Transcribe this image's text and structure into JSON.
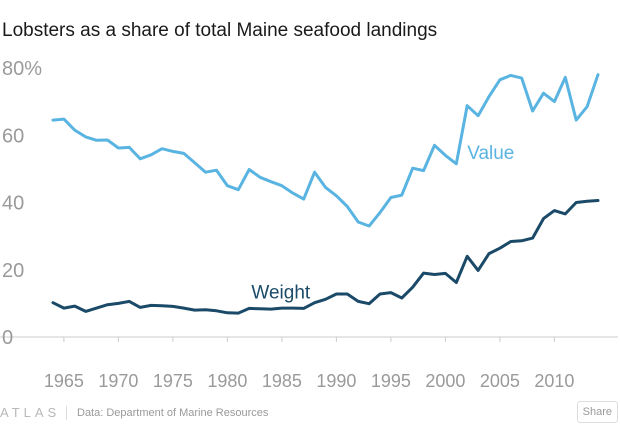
{
  "title": "Lobsters as a share of total Maine seafood landings",
  "footer": {
    "logo": "ATLAS",
    "source": "Data: Department of Marine Resources",
    "share_label": "Share"
  },
  "colors": {
    "value": "#5ab4e1",
    "weight": "#1a4a68",
    "axis": "#cccccc",
    "tick_text": "#9a9a9a"
  },
  "chart_data": {
    "type": "line",
    "title": "Lobsters as a share of total Maine seafood landings",
    "xlabel": "",
    "ylabel": "",
    "xlim": [
      1964,
      2014
    ],
    "ylim": [
      0,
      80
    ],
    "x_ticks": [
      "1965",
      "1970",
      "1975",
      "1980",
      "1985",
      "1990",
      "1995",
      "2000",
      "2005",
      "2010"
    ],
    "y_ticks": [
      "0",
      "20",
      "40",
      "60",
      "80%"
    ],
    "grid": false,
    "x": [
      1964,
      1965,
      1966,
      1967,
      1968,
      1969,
      1970,
      1971,
      1972,
      1973,
      1974,
      1975,
      1976,
      1977,
      1978,
      1979,
      1980,
      1981,
      1982,
      1983,
      1984,
      1985,
      1986,
      1987,
      1988,
      1989,
      1990,
      1991,
      1992,
      1993,
      1994,
      1995,
      1996,
      1997,
      1998,
      1999,
      2000,
      2001,
      2002,
      2003,
      2004,
      2005,
      2006,
      2007,
      2008,
      2009,
      2010,
      2011,
      2012,
      2013,
      2014
    ],
    "series": [
      {
        "name": "Value",
        "values": [
          64.5,
          64.8,
          61.5,
          59.5,
          58.5,
          58.6,
          56.2,
          56.4,
          53.0,
          54.2,
          56.0,
          55.2,
          54.6,
          51.8,
          49.0,
          49.6,
          45.0,
          43.8,
          49.8,
          47.5,
          46.2,
          45.0,
          42.8,
          41.0,
          49.0,
          44.5,
          42.0,
          38.8,
          34.2,
          33.0,
          37.0,
          41.5,
          42.2,
          50.2,
          49.5,
          57.0,
          54.0,
          51.5,
          68.8,
          65.8,
          71.5,
          76.5,
          77.8,
          77.0,
          67.2,
          72.5,
          70.0,
          77.2,
          64.5,
          68.5,
          78.0
        ]
      },
      {
        "name": "Weight",
        "values": [
          10.2,
          8.6,
          9.2,
          7.6,
          8.6,
          9.6,
          10.0,
          10.6,
          8.8,
          9.4,
          9.3,
          9.1,
          8.6,
          8.0,
          8.1,
          7.8,
          7.2,
          7.1,
          8.5,
          8.4,
          8.3,
          8.6,
          8.6,
          8.5,
          10.2,
          11.2,
          12.8,
          12.8,
          10.6,
          9.9,
          12.8,
          13.2,
          11.6,
          14.8,
          19.0,
          18.6,
          18.9,
          16.2,
          24.0,
          19.8,
          24.8,
          26.4,
          28.4,
          28.6,
          29.4,
          35.2,
          37.6,
          36.6,
          40.0,
          40.4,
          40.6
        ]
      }
    ]
  }
}
